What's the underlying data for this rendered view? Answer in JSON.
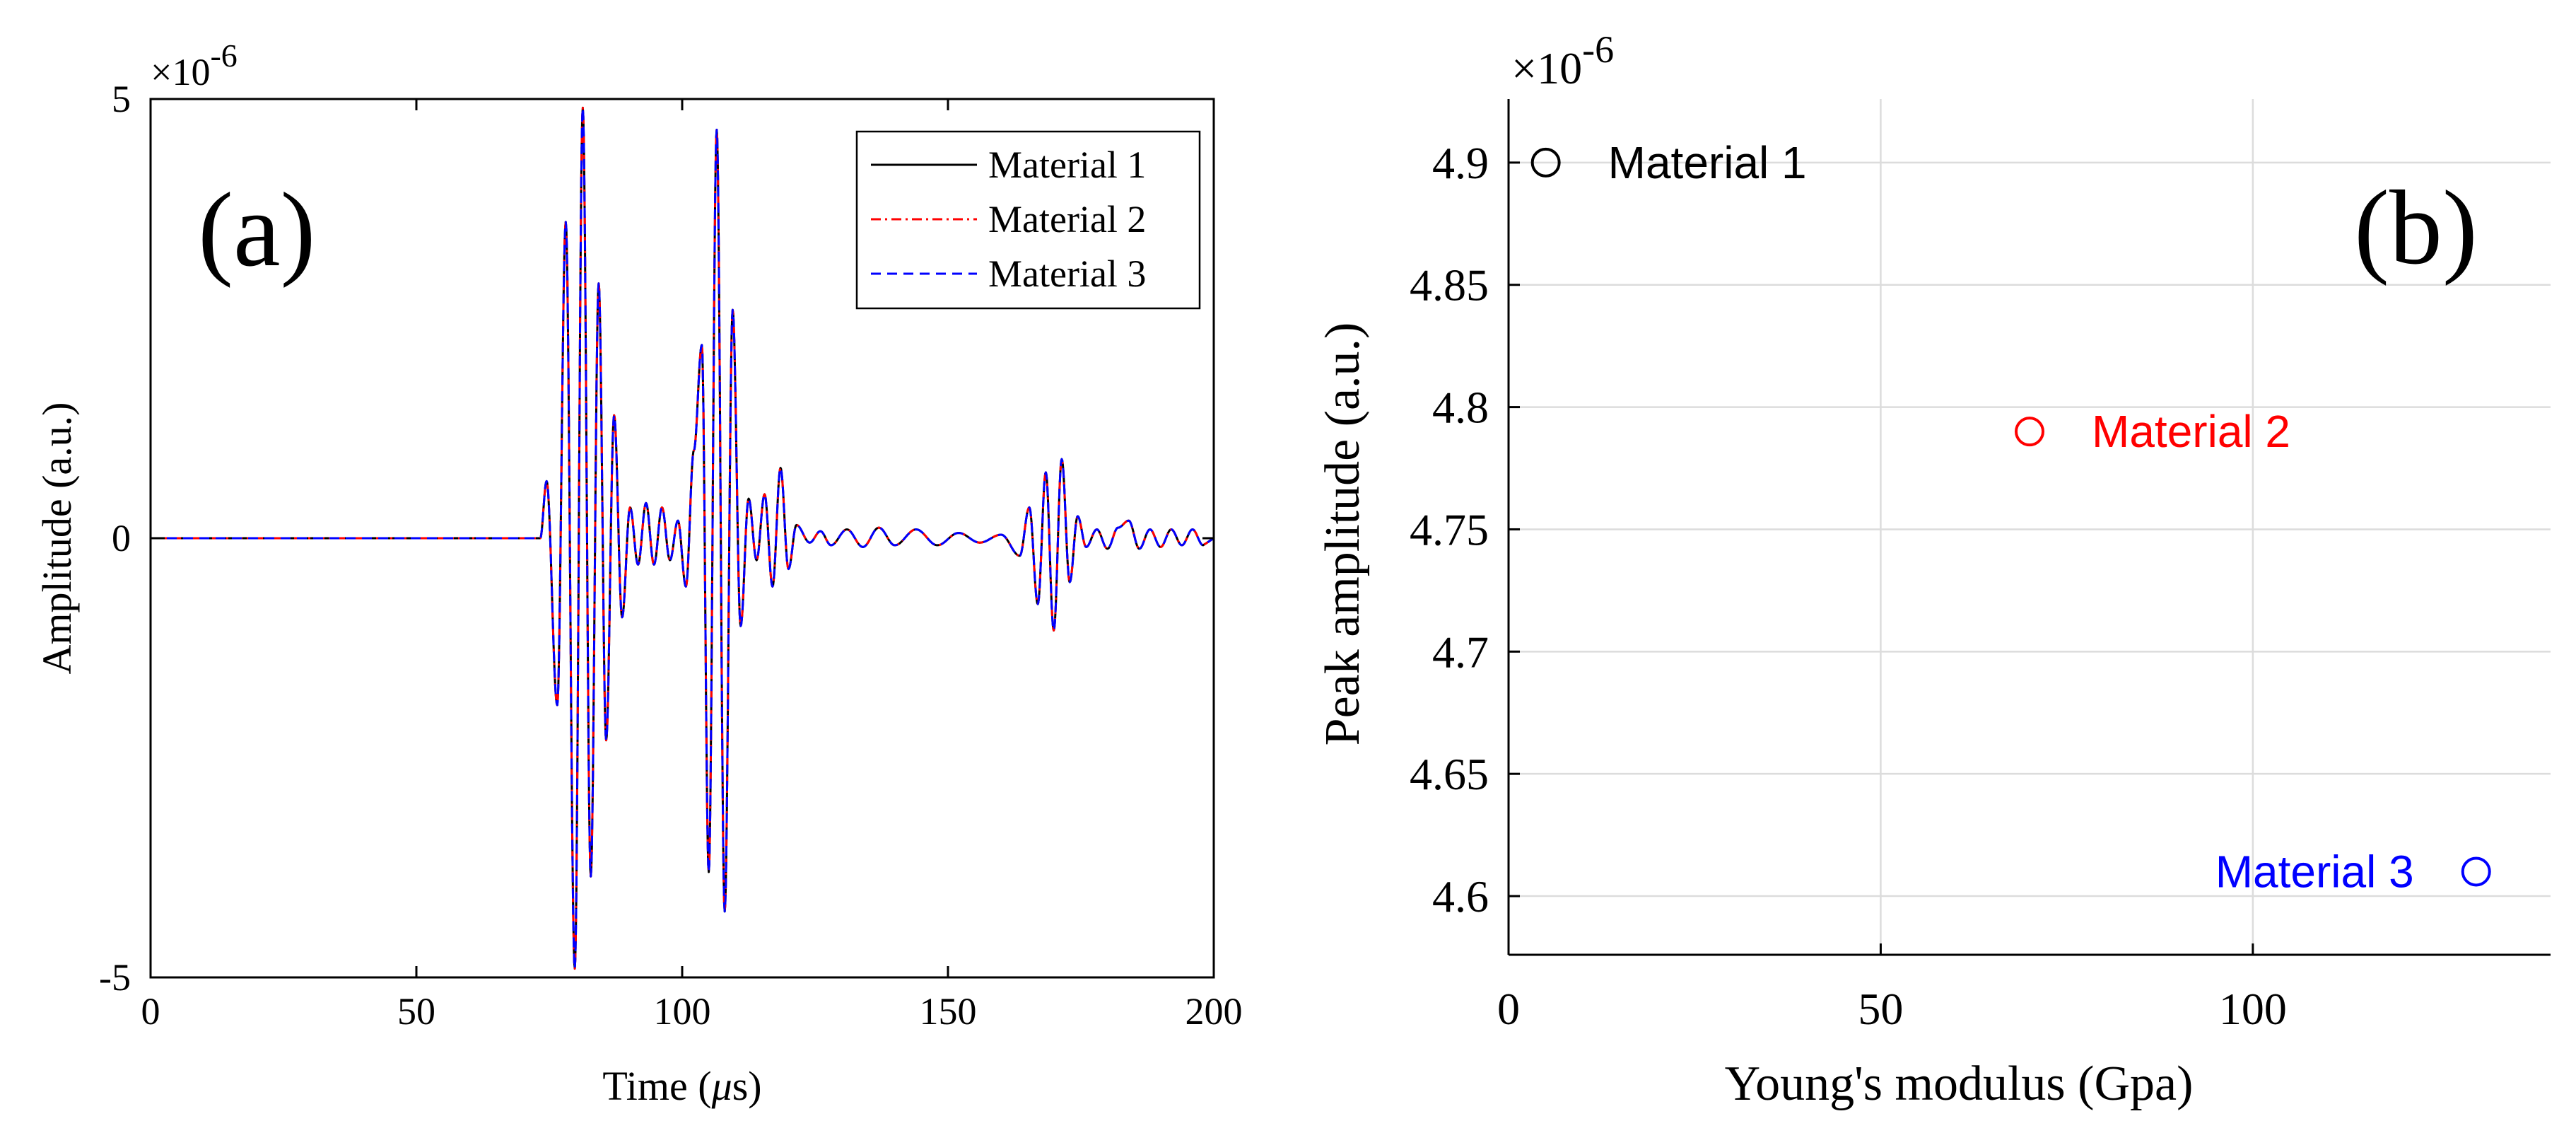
{
  "chart_data": [
    {
      "type": "line",
      "panel_label": "(a)",
      "exponent_label": "×10",
      "exponent_power": "-6",
      "xlabel_text": "Time (",
      "xlabel_symbol": "μ",
      "xlabel_unit": "s)",
      "ylabel": "Amplitude (a.u.)",
      "xlim": [
        0,
        200
      ],
      "ylim": [
        -5,
        5
      ],
      "y_scale": "×1e-6",
      "x_ticks": [
        0,
        50,
        100,
        150,
        200
      ],
      "x_tick_labels": [
        "0",
        "50",
        "100",
        "150",
        "200"
      ],
      "y_ticks": [
        -5,
        0,
        5
      ],
      "y_tick_labels": [
        "-5",
        "0",
        "5"
      ],
      "grid": false,
      "legend_position": "top-right",
      "series": [
        {
          "name": "Material 1",
          "color": "#000000",
          "style": "solid"
        },
        {
          "name": "Material 2",
          "color": "#ff0000",
          "style": "dash-dot"
        },
        {
          "name": "Material 3",
          "color": "#0000ff",
          "style": "dashed"
        }
      ],
      "wave_peaks": [
        {
          "t": 74.5,
          "v": 0.65
        },
        {
          "t": 76.5,
          "v": -1.9
        },
        {
          "t": 78.1,
          "v": 3.6
        },
        {
          "t": 79.8,
          "v": -4.9
        },
        {
          "t": 81.3,
          "v": 4.9
        },
        {
          "t": 82.8,
          "v": -3.85
        },
        {
          "t": 84.3,
          "v": 2.9
        },
        {
          "t": 85.7,
          "v": -2.3
        },
        {
          "t": 87.2,
          "v": 1.4
        },
        {
          "t": 88.7,
          "v": -0.9
        },
        {
          "t": 90.2,
          "v": 0.35
        },
        {
          "t": 91.7,
          "v": -0.3
        },
        {
          "t": 93.2,
          "v": 0.4
        },
        {
          "t": 94.7,
          "v": -0.3
        },
        {
          "t": 96.2,
          "v": 0.35
        },
        {
          "t": 97.7,
          "v": -0.25
        },
        {
          "t": 99.2,
          "v": 0.2
        },
        {
          "t": 100.7,
          "v": -0.55
        },
        {
          "t": 102.2,
          "v": 1.0
        },
        {
          "t": 103.7,
          "v": 2.2
        },
        {
          "t": 105.0,
          "v": -3.8
        },
        {
          "t": 106.5,
          "v": 4.65
        },
        {
          "t": 108.0,
          "v": -4.25
        },
        {
          "t": 109.5,
          "v": 2.6
        },
        {
          "t": 111.0,
          "v": -1.0
        },
        {
          "t": 112.5,
          "v": 0.45
        },
        {
          "t": 114.0,
          "v": -0.25
        },
        {
          "t": 115.5,
          "v": 0.5
        },
        {
          "t": 117.0,
          "v": -0.55
        },
        {
          "t": 118.5,
          "v": 0.8
        },
        {
          "t": 120.0,
          "v": -0.35
        },
        {
          "t": 121.5,
          "v": 0.15
        },
        {
          "t": 124.0,
          "v": -0.05
        },
        {
          "t": 126.0,
          "v": 0.08
        },
        {
          "t": 128.0,
          "v": -0.08
        },
        {
          "t": 131.0,
          "v": 0.1
        },
        {
          "t": 134.0,
          "v": -0.1
        },
        {
          "t": 137.0,
          "v": 0.12
        },
        {
          "t": 140.0,
          "v": -0.08
        },
        {
          "t": 144.0,
          "v": 0.1
        },
        {
          "t": 148.0,
          "v": -0.08
        },
        {
          "t": 152.0,
          "v": 0.06
        },
        {
          "t": 156.0,
          "v": -0.05
        },
        {
          "t": 160.0,
          "v": 0.04
        },
        {
          "t": 163.5,
          "v": -0.2
        },
        {
          "t": 165.3,
          "v": 0.35
        },
        {
          "t": 166.9,
          "v": -0.75
        },
        {
          "t": 168.4,
          "v": 0.75
        },
        {
          "t": 169.9,
          "v": -1.05
        },
        {
          "t": 171.4,
          "v": 0.9
        },
        {
          "t": 172.9,
          "v": -0.5
        },
        {
          "t": 174.4,
          "v": 0.25
        },
        {
          "t": 176.0,
          "v": -0.1
        },
        {
          "t": 178.0,
          "v": 0.1
        },
        {
          "t": 180.0,
          "v": -0.12
        },
        {
          "t": 182.0,
          "v": 0.12
        },
        {
          "t": 184.0,
          "v": 0.2
        },
        {
          "t": 186.0,
          "v": -0.12
        },
        {
          "t": 188.0,
          "v": 0.1
        },
        {
          "t": 190.0,
          "v": -0.1
        },
        {
          "t": 192.0,
          "v": 0.1
        },
        {
          "t": 194.0,
          "v": -0.08
        },
        {
          "t": 196.0,
          "v": 0.1
        },
        {
          "t": 198.0,
          "v": -0.08
        }
      ]
    },
    {
      "type": "scatter",
      "panel_label": "(b)",
      "exponent_label": "×10",
      "exponent_power": "-6",
      "xlabel": "Young's modulus (Gpa)",
      "ylabel": "Peak amplitude (a.u.)",
      "xlim": [
        0,
        140
      ],
      "ylim": [
        4.576,
        4.926
      ],
      "y_scale": "×1e-6",
      "x_ticks": [
        0,
        50,
        100
      ],
      "x_tick_labels": [
        "0",
        "50",
        "100"
      ],
      "y_ticks": [
        4.6,
        4.65,
        4.7,
        4.75,
        4.8,
        4.85,
        4.9
      ],
      "y_tick_labels": [
        "4.6",
        "4.65",
        "4.7",
        "4.75",
        "4.8",
        "4.85",
        "4.9"
      ],
      "grid": true,
      "points": [
        {
          "name": "Material 1",
          "x": 5,
          "y": 4.9,
          "color": "#000000",
          "label_side": "right"
        },
        {
          "name": "Material 2",
          "x": 70,
          "y": 4.79,
          "color": "#ff0000",
          "label_side": "right"
        },
        {
          "name": "Material 3",
          "x": 130,
          "y": 4.61,
          "color": "#0000ff",
          "label_side": "left"
        }
      ]
    }
  ]
}
